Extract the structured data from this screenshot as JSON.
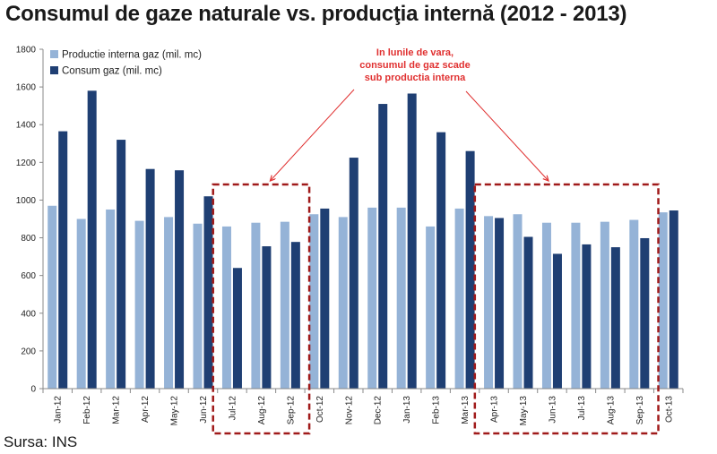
{
  "title": "Consumul de gaze naturale vs. producţia internă (2012 - 2013)",
  "source": "Sursa: INS",
  "colors": {
    "production": "#95b3d7",
    "consumption": "#1f3f73",
    "annotation": "#e03030",
    "box": "#a01a1a"
  },
  "chart_data": {
    "type": "bar",
    "categories": [
      "Jan-12",
      "Feb-12",
      "Mar-12",
      "Apr-12",
      "May-12",
      "Jun-12",
      "Jul-12",
      "Aug-12",
      "Sep-12",
      "Oct-12",
      "Nov-12",
      "Dec-12",
      "Jan-13",
      "Feb-13",
      "Mar-13",
      "Apr-13",
      "May-13",
      "Jun-13",
      "Jul-13",
      "Aug-13",
      "Sep-13",
      "Oct-13"
    ],
    "series": [
      {
        "name": "Productie interna gaz (mil. mc)",
        "color": "#95b3d7",
        "values": [
          970,
          900,
          950,
          890,
          910,
          875,
          860,
          880,
          885,
          925,
          910,
          960,
          960,
          860,
          955,
          915,
          925,
          880,
          880,
          885,
          895,
          935
        ]
      },
      {
        "name": "Consum gaz (mil. mc)",
        "color": "#1f3f73",
        "values": [
          1365,
          1580,
          1320,
          1165,
          1158,
          1020,
          640,
          755,
          778,
          955,
          1225,
          1510,
          1565,
          1360,
          1260,
          905,
          805,
          715,
          765,
          750,
          798,
          945
        ]
      }
    ],
    "ylim": [
      0,
      1800
    ],
    "yticks": [
      0,
      200,
      400,
      600,
      800,
      1000,
      1200,
      1400,
      1600,
      1800
    ],
    "legend": "top-left",
    "grid": false,
    "annotation": {
      "lines": [
        "In lunile de vara,",
        "consumul de gaz scade",
        "sub productia interna"
      ],
      "highlight_ranges": [
        [
          "Jul-12",
          "Sep-12"
        ],
        [
          "Apr-13",
          "Sep-13"
        ]
      ]
    }
  }
}
